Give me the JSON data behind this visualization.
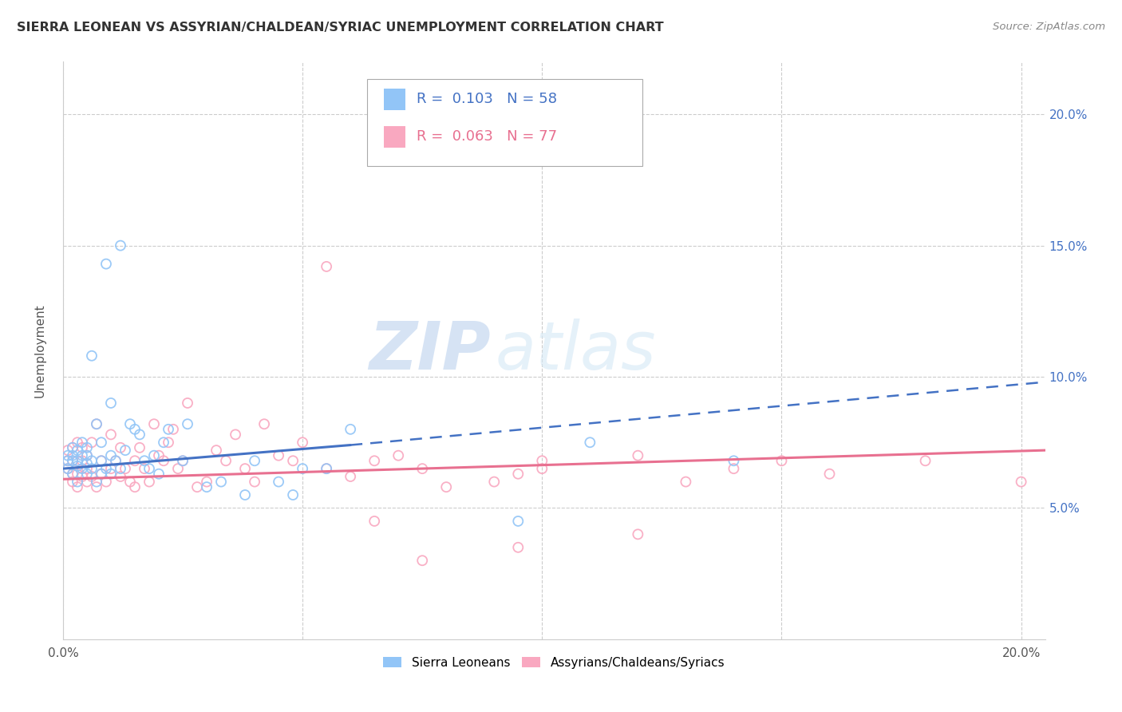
{
  "title": "SIERRA LEONEAN VS ASSYRIAN/CHALDEAN/SYRIAC UNEMPLOYMENT CORRELATION CHART",
  "source": "Source: ZipAtlas.com",
  "ylabel": "Unemployment",
  "xlim": [
    0.0,
    0.205
  ],
  "ylim": [
    0.0,
    0.22
  ],
  "ytick_labels": [
    "5.0%",
    "10.0%",
    "15.0%",
    "20.0%"
  ],
  "ytick_values": [
    0.05,
    0.1,
    0.15,
    0.2
  ],
  "xtick_labels": [
    "0.0%",
    "",
    "",
    "",
    "20.0%"
  ],
  "xtick_values": [
    0.0,
    0.05,
    0.1,
    0.15,
    0.2
  ],
  "legend_label1": "Sierra Leoneans",
  "legend_label2": "Assyrians/Chaldeans/Syriacs",
  "legend_R1": "R =  0.103",
  "legend_N1": "N = 58",
  "legend_R2": "R =  0.063",
  "legend_N2": "N = 77",
  "color1": "#92C5F7",
  "color2": "#F9A8C0",
  "trendline1_x": [
    0.0,
    0.06,
    0.205
  ],
  "trendline1_y": [
    0.065,
    0.074,
    0.098
  ],
  "trendline1_dash_start": 0.06,
  "trendline2_x": [
    0.0,
    0.205
  ],
  "trendline2_y": [
    0.061,
    0.072
  ],
  "watermark_zip": "ZIP",
  "watermark_atlas": "atlas",
  "sierra_leonean_x": [
    0.001,
    0.001,
    0.001,
    0.002,
    0.002,
    0.002,
    0.002,
    0.003,
    0.003,
    0.003,
    0.003,
    0.004,
    0.004,
    0.004,
    0.005,
    0.005,
    0.005,
    0.005,
    0.006,
    0.006,
    0.006,
    0.007,
    0.007,
    0.008,
    0.008,
    0.008,
    0.009,
    0.009,
    0.01,
    0.01,
    0.01,
    0.011,
    0.012,
    0.012,
    0.013,
    0.014,
    0.015,
    0.016,
    0.017,
    0.018,
    0.019,
    0.02,
    0.021,
    0.022,
    0.025,
    0.026,
    0.03,
    0.033,
    0.038,
    0.04,
    0.045,
    0.048,
    0.05,
    0.055,
    0.06,
    0.095,
    0.11,
    0.14
  ],
  "sierra_leonean_y": [
    0.065,
    0.068,
    0.07,
    0.063,
    0.068,
    0.07,
    0.073,
    0.06,
    0.066,
    0.068,
    0.072,
    0.065,
    0.07,
    0.075,
    0.063,
    0.067,
    0.07,
    0.073,
    0.065,
    0.068,
    0.108,
    0.06,
    0.082,
    0.063,
    0.068,
    0.075,
    0.065,
    0.143,
    0.063,
    0.07,
    0.09,
    0.068,
    0.065,
    0.15,
    0.072,
    0.082,
    0.08,
    0.078,
    0.068,
    0.065,
    0.07,
    0.063,
    0.075,
    0.08,
    0.068,
    0.082,
    0.058,
    0.06,
    0.055,
    0.068,
    0.06,
    0.055,
    0.065,
    0.065,
    0.08,
    0.045,
    0.075,
    0.068
  ],
  "assyrian_x": [
    0.001,
    0.001,
    0.001,
    0.002,
    0.002,
    0.002,
    0.002,
    0.003,
    0.003,
    0.003,
    0.003,
    0.004,
    0.004,
    0.004,
    0.005,
    0.005,
    0.005,
    0.006,
    0.006,
    0.007,
    0.007,
    0.008,
    0.008,
    0.009,
    0.01,
    0.01,
    0.011,
    0.012,
    0.012,
    0.013,
    0.014,
    0.015,
    0.015,
    0.016,
    0.017,
    0.018,
    0.019,
    0.02,
    0.021,
    0.022,
    0.023,
    0.024,
    0.025,
    0.026,
    0.028,
    0.03,
    0.032,
    0.034,
    0.036,
    0.038,
    0.04,
    0.042,
    0.045,
    0.048,
    0.05,
    0.055,
    0.06,
    0.065,
    0.07,
    0.075,
    0.08,
    0.09,
    0.1,
    0.12,
    0.14,
    0.16,
    0.18,
    0.2,
    0.055,
    0.095,
    0.13,
    0.15,
    0.1,
    0.12,
    0.095,
    0.065,
    0.075
  ],
  "assyrian_y": [
    0.065,
    0.068,
    0.072,
    0.06,
    0.063,
    0.068,
    0.073,
    0.058,
    0.063,
    0.068,
    0.075,
    0.062,
    0.068,
    0.073,
    0.06,
    0.065,
    0.07,
    0.062,
    0.075,
    0.058,
    0.082,
    0.063,
    0.068,
    0.06,
    0.065,
    0.078,
    0.068,
    0.062,
    0.073,
    0.065,
    0.06,
    0.068,
    0.058,
    0.073,
    0.065,
    0.06,
    0.082,
    0.07,
    0.068,
    0.075,
    0.08,
    0.065,
    0.068,
    0.09,
    0.058,
    0.06,
    0.072,
    0.068,
    0.078,
    0.065,
    0.06,
    0.082,
    0.07,
    0.068,
    0.075,
    0.065,
    0.062,
    0.068,
    0.07,
    0.065,
    0.058,
    0.06,
    0.068,
    0.07,
    0.065,
    0.063,
    0.068,
    0.06,
    0.142,
    0.063,
    0.06,
    0.068,
    0.065,
    0.04,
    0.035,
    0.045,
    0.03
  ]
}
